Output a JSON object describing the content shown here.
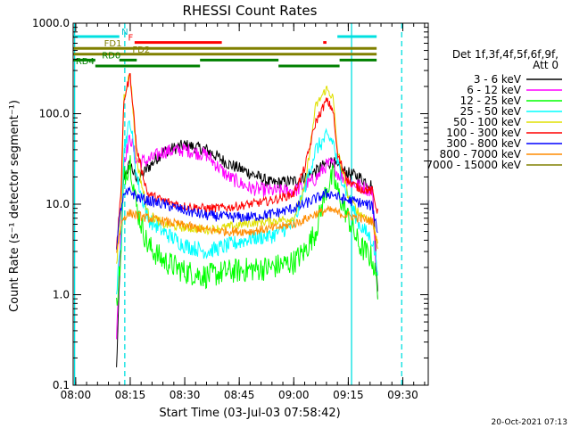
{
  "chart_data": {
    "type": "line",
    "title": "RHESSI Count Rates",
    "xlabel": "Start Time (03-Jul-03 07:58:42)",
    "ylabel": "Count Rate (s⁻¹ detector segment⁻¹)",
    "yscale": "log",
    "ylim": [
      0.1,
      1000
    ],
    "xlim": [
      7.9883,
      9.6167
    ],
    "x_ticks": [
      8.0,
      8.25,
      8.5,
      8.75,
      9.0,
      9.25,
      9.5
    ],
    "x_tick_labels": [
      "08:00",
      "08:15",
      "08:30",
      "08:45",
      "09:00",
      "09:15",
      "09:30"
    ],
    "y_ticks": [
      0.1,
      1,
      10,
      100,
      1000
    ],
    "y_tick_labels": [
      "0.1",
      "1.0",
      "10.0",
      "100.0",
      "1000.0"
    ],
    "legend": {
      "title_lines": [
        "Det 1f,3f,4f,5f,6f,9f,",
        "Att 0"
      ],
      "placement": "right-outside"
    },
    "x_knots": [
      8.187,
      8.21,
      8.22,
      8.25,
      8.28,
      8.33,
      8.4,
      8.5,
      8.6,
      8.7,
      8.8,
      8.9,
      9.0,
      9.05,
      9.1,
      9.15,
      9.18,
      9.2,
      9.25,
      9.3,
      9.36,
      9.385
    ],
    "series": [
      {
        "name": "3 - 6 keV",
        "color": "#000000",
        "noise": 0.07,
        "values": [
          0.15,
          6,
          20,
          28,
          18,
          25,
          38,
          45,
          40,
          28,
          22,
          17,
          18,
          20,
          23,
          28,
          30,
          25,
          22,
          20,
          16,
          1.2
        ]
      },
      {
        "name": "6 - 12 keV",
        "color": "#ff00ff",
        "noise": 0.08,
        "values": [
          0.3,
          8,
          30,
          55,
          30,
          30,
          38,
          40,
          35,
          20,
          15,
          14,
          14,
          16,
          19,
          27,
          28,
          22,
          18,
          16,
          14,
          0.8
        ]
      },
      {
        "name": "12 - 25 keV",
        "color": "#00ff00",
        "noise": 0.14,
        "values": [
          0.8,
          3,
          20,
          30,
          9,
          3.5,
          2.4,
          1.8,
          1.6,
          1.8,
          1.9,
          2.0,
          2.3,
          3.0,
          5.0,
          15,
          20,
          14,
          7,
          3.5,
          2.5,
          1.2
        ]
      },
      {
        "name": "25 - 50 keV",
        "color": "#00ffff",
        "noise": 0.09,
        "values": [
          1.0,
          5,
          40,
          85,
          20,
          7,
          5,
          3.5,
          3.0,
          3.5,
          4.2,
          4.5,
          6.0,
          15,
          40,
          55,
          50,
          28,
          12,
          6,
          4,
          2
        ]
      },
      {
        "name": "50 - 100 keV",
        "color": "#e0e000",
        "noise": 0.05,
        "values": [
          2,
          10,
          150,
          290,
          30,
          8,
          6,
          5.5,
          5.2,
          5.6,
          6.2,
          6.5,
          7,
          15,
          120,
          190,
          150,
          40,
          12,
          8,
          6.5,
          4
        ]
      },
      {
        "name": "100 - 300 keV",
        "color": "#ff0000",
        "noise": 0.05,
        "values": [
          3,
          18,
          140,
          270,
          40,
          13,
          11,
          9.5,
          9,
          9.2,
          10,
          11,
          13,
          25,
          80,
          140,
          110,
          35,
          18,
          15,
          14,
          8
        ]
      },
      {
        "name": "300 - 800 keV",
        "color": "#0000ff",
        "noise": 0.06,
        "values": [
          3.5,
          10,
          12,
          14,
          12,
          11,
          10,
          8.5,
          7.5,
          7.2,
          7.2,
          7.8,
          9,
          10,
          11.5,
          13,
          13,
          12,
          11,
          10.5,
          9.5,
          5
        ]
      },
      {
        "name": "800 - 7000 keV",
        "color": "#ff8c00",
        "noise": 0.05,
        "values": [
          3,
          6,
          7.2,
          8,
          7.5,
          7,
          6.5,
          5.8,
          5.2,
          5.0,
          5.0,
          5.4,
          6,
          6.8,
          7.8,
          8.5,
          8.5,
          8,
          7.5,
          7,
          6.5,
          3.5
        ]
      },
      {
        "name": "7000 - 15000 keV",
        "color": "#808000",
        "noise": 0,
        "values": []
      }
    ],
    "attenuator_bars": [
      {
        "label": "N",
        "color": "#00e0e0",
        "row": 0,
        "segments": [
          [
            7.99,
            8.2
          ]
        ],
        "label_x": 8.21
      },
      {
        "label": "",
        "color": "#00e0e0",
        "row": 0,
        "segments": [
          [
            9.2,
            9.38
          ]
        ]
      },
      {
        "label": "F",
        "color": "#ff0000",
        "row": 1,
        "segments": [
          [
            8.27,
            8.67
          ],
          [
            9.135,
            9.15
          ]
        ],
        "label_x": 8.24
      },
      {
        "label": "FD1",
        "color": "#808000",
        "row": 2,
        "segments": [
          [
            7.99,
            9.38
          ]
        ],
        "label_x": 8.13
      },
      {
        "label": "FD2",
        "color": "#808000",
        "row": 3,
        "segments": [
          [
            7.99,
            9.38
          ]
        ],
        "label_x": 8.26
      },
      {
        "label": "RD0",
        "color": "#008000",
        "row": 4,
        "segments": [
          [
            7.99,
            8.09
          ],
          [
            8.2,
            8.28
          ],
          [
            8.57,
            8.93
          ],
          [
            9.21,
            9.38
          ]
        ],
        "label_x": 8.12
      },
      {
        "label": "RD4",
        "color": "#008000",
        "row": 5,
        "segments": [
          [
            8.09,
            8.57
          ],
          [
            8.93,
            9.21
          ]
        ],
        "label_x": 8.0
      }
    ],
    "vertical_lines": [
      {
        "x": 7.995,
        "color": "#00e0e0",
        "style": "solid"
      },
      {
        "x": 8.225,
        "color": "#00e0e0",
        "style": "dashed"
      },
      {
        "x": 9.265,
        "color": "#00e0e0",
        "style": "solid"
      },
      {
        "x": 9.495,
        "color": "#00e0e0",
        "style": "dashed"
      }
    ]
  },
  "footer": {
    "date_stamp": "20-Oct-2021 07:13"
  }
}
